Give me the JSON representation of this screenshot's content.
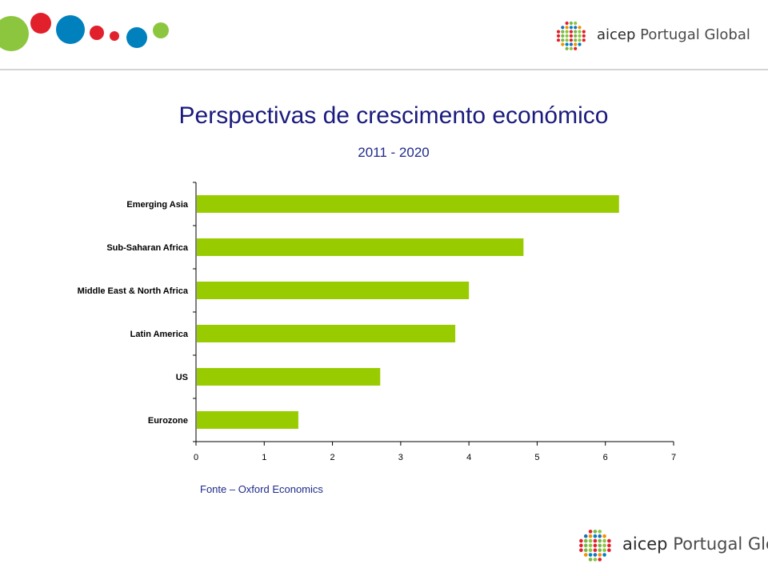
{
  "colors": {
    "bar": "#99cc00",
    "title": "#1a1a7e",
    "accent_green": "#8cc63f",
    "accent_red": "#e2202c",
    "accent_blue": "#0081be"
  },
  "brand": {
    "logo_top": {
      "bold": "aicep",
      "light": "Portugal Global",
      "icon": "dot-circle-logo-icon"
    },
    "logo_bottom": {
      "bold": "aicep",
      "light": "Portugal Global",
      "icon": "dot-circle-logo-icon"
    }
  },
  "header": {
    "title": "Perspectivas de crescimento económico",
    "subtitle": "2011 - 2020"
  },
  "chart_data": {
    "type": "bar",
    "orientation": "horizontal",
    "categories": [
      "Emerging Asia",
      "Sub-Saharan Africa",
      "Middle East & North Africa",
      "Latin America",
      "US",
      "Eurozone"
    ],
    "values": [
      6.2,
      4.8,
      4.0,
      3.8,
      2.7,
      1.5
    ],
    "xlim": [
      0,
      7
    ],
    "xticks": [
      "0",
      "1",
      "2",
      "3",
      "4",
      "5",
      "6",
      "7"
    ],
    "grid": false,
    "legend": "none"
  },
  "footer": {
    "source": "Fonte – Oxford Economics"
  }
}
